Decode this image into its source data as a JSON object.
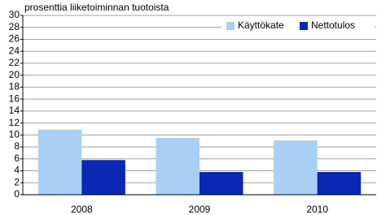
{
  "chart_data": {
    "type": "bar",
    "y_label": "prosenttia liiketoiminnan tuotoista",
    "categories": [
      "2008",
      "2009",
      "2010"
    ],
    "series": [
      {
        "name": "Käyttökate",
        "color": "#a8d0f5",
        "values": [
          10.9,
          9.5,
          9.1
        ]
      },
      {
        "name": "Nettotulos",
        "color": "#0a28b4",
        "values": [
          5.8,
          3.8,
          3.8
        ]
      }
    ],
    "ylim": [
      0,
      30
    ],
    "yticks": [
      0,
      2,
      4,
      6,
      8,
      10,
      12,
      14,
      16,
      18,
      20,
      22,
      24,
      26,
      28,
      30
    ],
    "grid": true,
    "legend": "upper right"
  }
}
